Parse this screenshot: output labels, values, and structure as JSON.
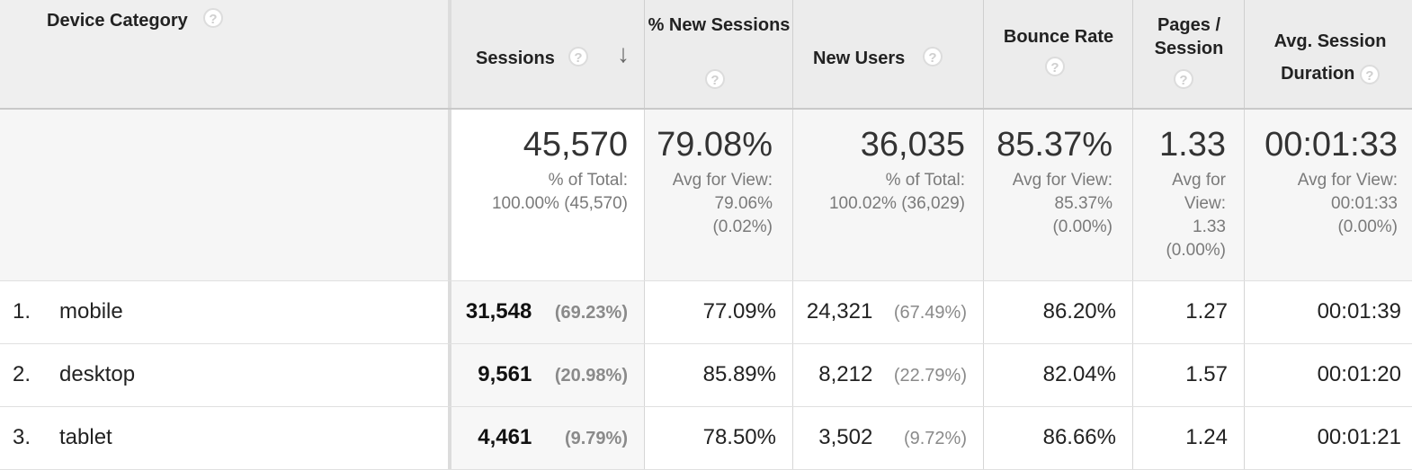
{
  "headers": {
    "device_category": "Device Category",
    "sessions": "Sessions",
    "new_sessions": "% New Sessions",
    "new_users": "New Users",
    "bounce_rate": "Bounce Rate",
    "pages_session": "Pages / Session",
    "avg_session_duration": "Avg. Session Duration",
    "help_glyph": "?",
    "sort_glyph": "↓"
  },
  "totals": {
    "sessions": {
      "value": "45,570",
      "sub": [
        "% of Total:",
        "100.00% (45,570)"
      ]
    },
    "new_sessions": {
      "value": "79.08%",
      "sub": [
        "Avg for View:",
        "79.06%",
        "(0.02%)"
      ]
    },
    "new_users": {
      "value": "36,035",
      "sub": [
        "% of Total:",
        "100.02% (36,029)"
      ]
    },
    "bounce_rate": {
      "value": "85.37%",
      "sub": [
        "Avg for View:",
        "85.37%",
        "(0.00%)"
      ]
    },
    "pages_session": {
      "value": "1.33",
      "sub": [
        "Avg for",
        "View:",
        "1.33",
        "(0.00%)"
      ]
    },
    "avg_session_duration": {
      "value": "00:01:33",
      "sub": [
        "Avg for View:",
        "00:01:33",
        "(0.00%)"
      ]
    }
  },
  "rows": [
    {
      "index": "1.",
      "device": "mobile",
      "sessions": "31,548",
      "sessions_pct": "(69.23%)",
      "new_sessions": "77.09%",
      "new_users": "24,321",
      "new_users_pct": "(67.49%)",
      "bounce_rate": "86.20%",
      "pages_session": "1.27",
      "avg_session_duration": "00:01:39"
    },
    {
      "index": "2.",
      "device": "desktop",
      "sessions": "9,561",
      "sessions_pct": "(20.98%)",
      "new_sessions": "85.89%",
      "new_users": "8,212",
      "new_users_pct": "(22.79%)",
      "bounce_rate": "82.04%",
      "pages_session": "1.57",
      "avg_session_duration": "00:01:20"
    },
    {
      "index": "3.",
      "device": "tablet",
      "sessions": "4,461",
      "sessions_pct": "(9.79%)",
      "new_sessions": "78.50%",
      "new_users": "3,502",
      "new_users_pct": "(9.72%)",
      "bounce_rate": "86.66%",
      "pages_session": "1.24",
      "avg_session_duration": "00:01:21"
    }
  ]
}
